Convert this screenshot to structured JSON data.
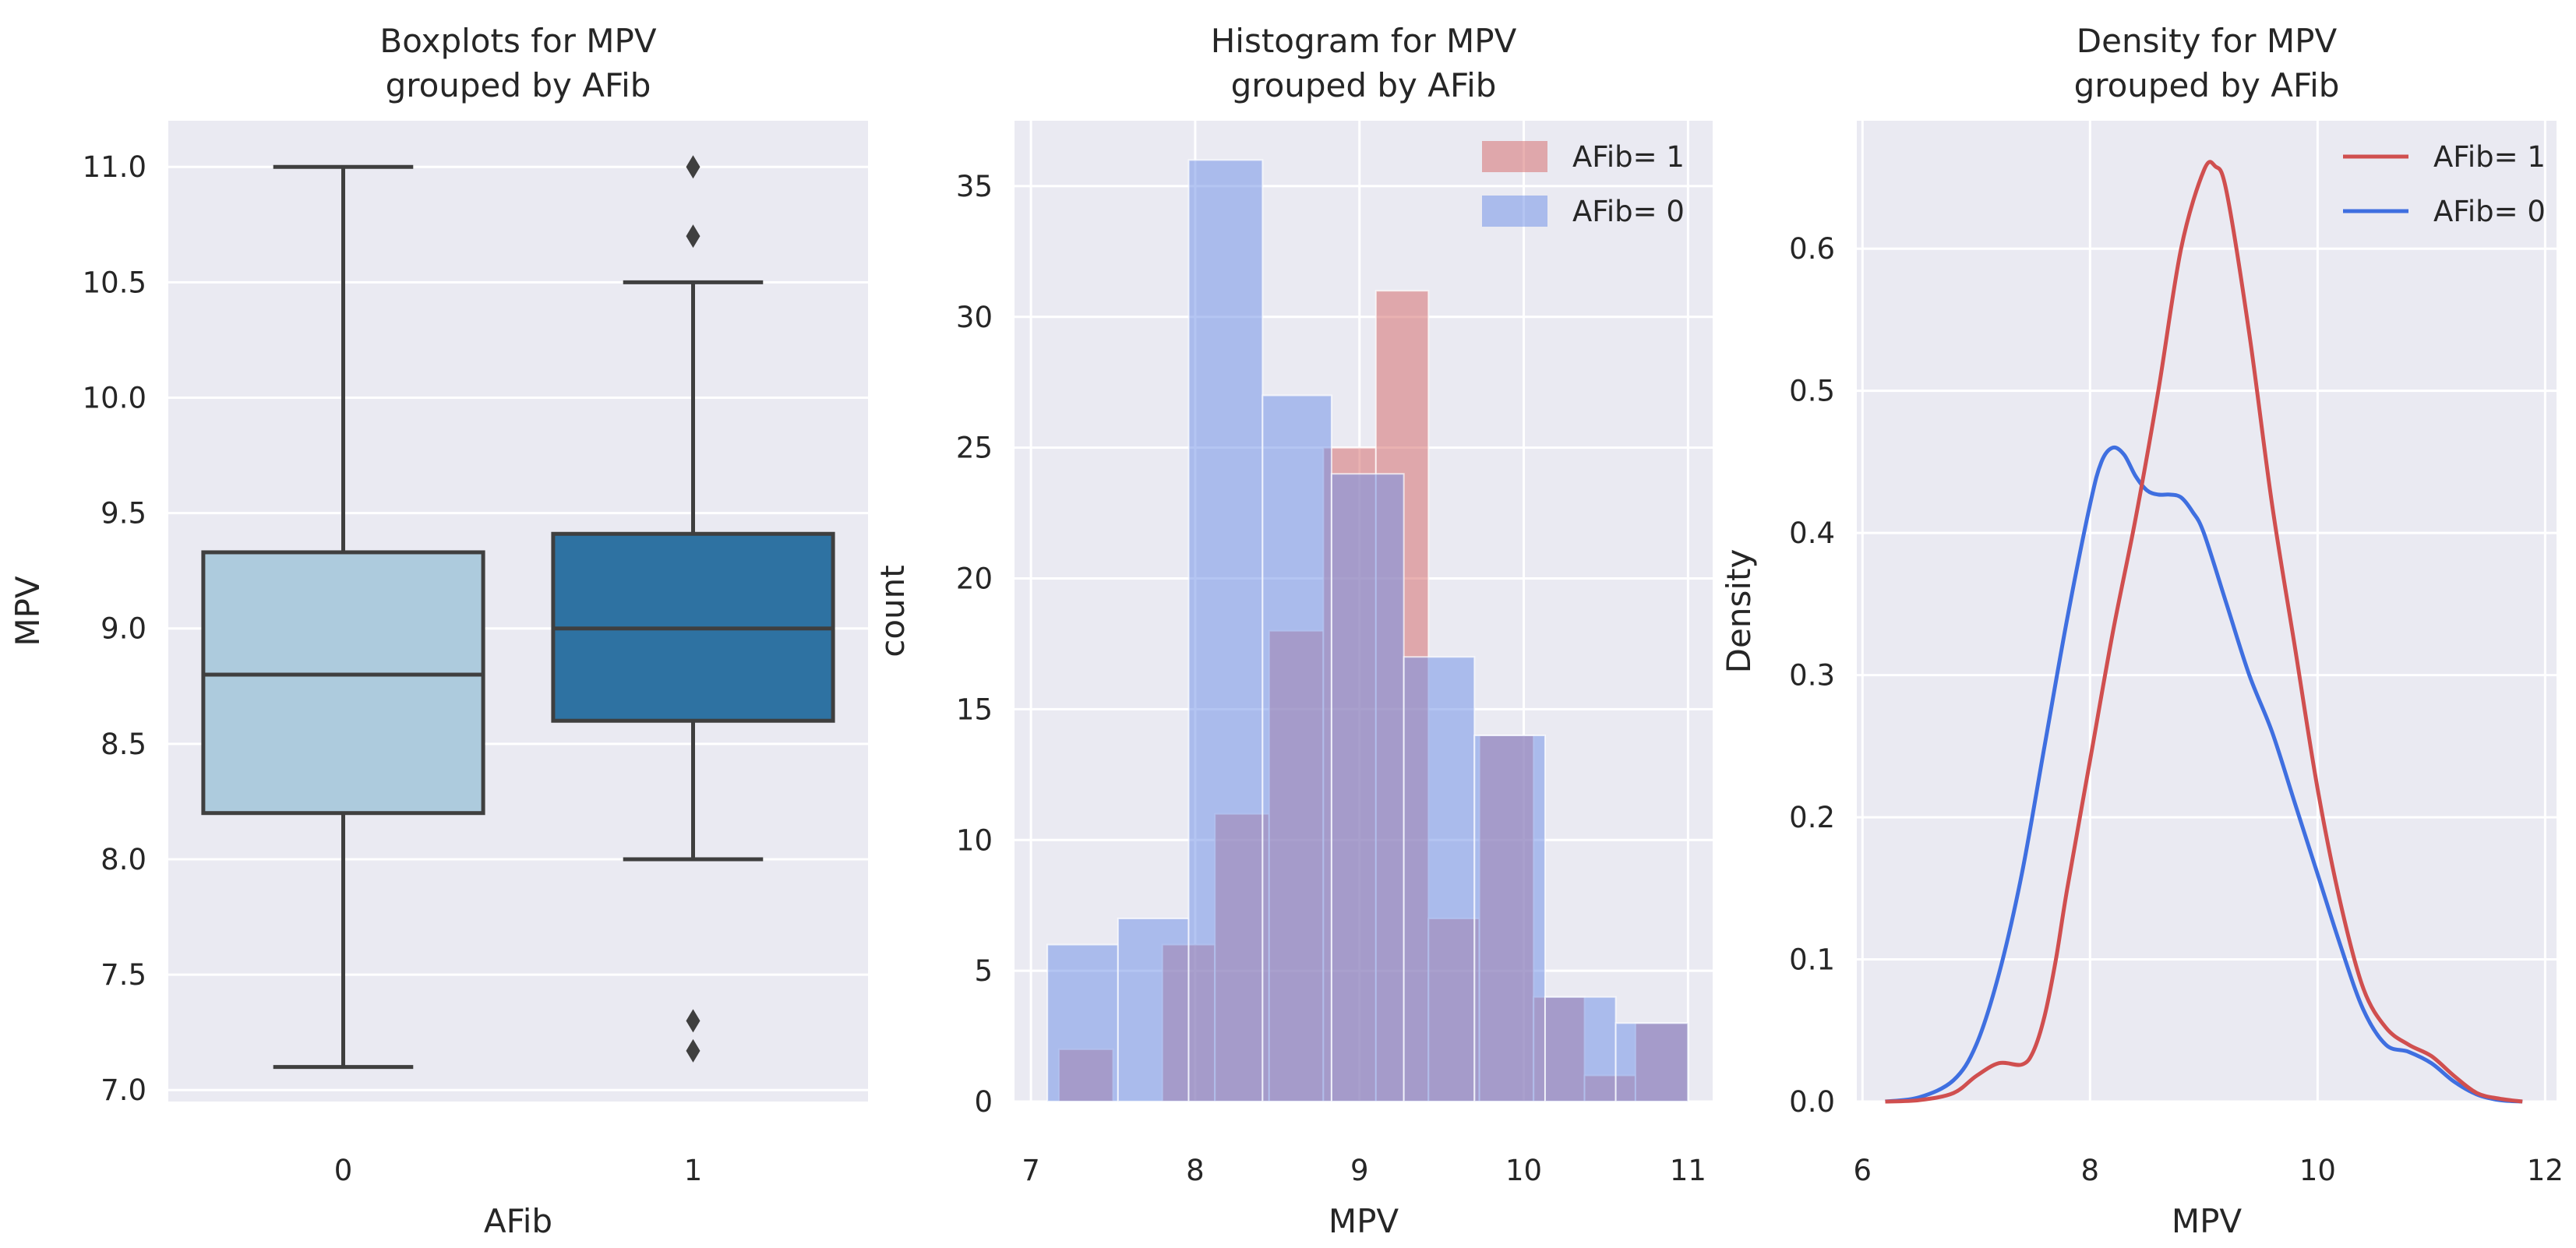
{
  "colors": {
    "plot_bg": "#EAEAF2",
    "grid": "#FFFFFF",
    "box_afib0": "#ADCBDD",
    "box_afib1": "#2E72A2",
    "box_edge": "#3F3F3F",
    "hist_afib1": "#D46A6A",
    "hist_afib0": "#6F8FE6",
    "density_afib1": "#D04F4F",
    "density_afib0": "#3F6FE0"
  },
  "chart_data": [
    {
      "type": "box",
      "title": "Boxplots for MPV\ngrouped by AFib",
      "xlabel": "AFib",
      "ylabel": "MPV",
      "categories": [
        "0",
        "1"
      ],
      "ylim": [
        6.95,
        11.2
      ],
      "yticks": [
        7.0,
        7.5,
        8.0,
        8.5,
        9.0,
        9.5,
        10.0,
        10.5,
        11.0
      ],
      "ytick_labels": [
        "7.0",
        "7.5",
        "8.0",
        "8.5",
        "9.0",
        "9.5",
        "10.0",
        "10.5",
        "11.0"
      ],
      "boxes": [
        {
          "category": "0",
          "whisker_low": 7.1,
          "q1": 8.2,
          "median": 8.8,
          "q3": 9.33,
          "whisker_high": 11.0,
          "outliers": []
        },
        {
          "category": "1",
          "whisker_low": 8.0,
          "q1": 8.6,
          "median": 9.0,
          "q3": 9.41,
          "whisker_high": 10.5,
          "outliers": [
            7.17,
            7.3,
            10.7,
            11.0
          ]
        }
      ]
    },
    {
      "type": "histogram",
      "title": "Histogram for MPV\ngrouped by AFib",
      "xlabel": "MPV",
      "ylabel": "count",
      "xlim": [
        6.9,
        11.15
      ],
      "ylim": [
        0,
        37.5
      ],
      "xticks": [
        7,
        8,
        9,
        10,
        11
      ],
      "xtick_labels": [
        "7",
        "8",
        "9",
        "10",
        "11"
      ],
      "yticks": [
        0,
        5,
        10,
        15,
        20,
        25,
        30,
        35
      ],
      "ytick_labels": [
        "0",
        "5",
        "10",
        "15",
        "20",
        "25",
        "30",
        "35"
      ],
      "legend_position": "top-right",
      "series": [
        {
          "name": "AFib= 1",
          "color_key": "hist_afib1",
          "bins": [
            {
              "x0": 7.17,
              "x1": 7.5,
              "count": 2
            },
            {
              "x0": 7.8,
              "x1": 8.12,
              "count": 6
            },
            {
              "x0": 8.12,
              "x1": 8.45,
              "count": 11
            },
            {
              "x0": 8.45,
              "x1": 8.78,
              "count": 18
            },
            {
              "x0": 8.78,
              "x1": 9.1,
              "count": 25
            },
            {
              "x0": 9.1,
              "x1": 9.42,
              "count": 31
            },
            {
              "x0": 9.42,
              "x1": 9.73,
              "count": 7
            },
            {
              "x0": 9.73,
              "x1": 10.06,
              "count": 14
            },
            {
              "x0": 10.06,
              "x1": 10.37,
              "count": 4
            },
            {
              "x0": 10.37,
              "x1": 10.68,
              "count": 1
            },
            {
              "x0": 10.68,
              "x1": 11.0,
              "count": 3
            }
          ]
        },
        {
          "name": "AFib= 0",
          "color_key": "hist_afib0",
          "bins": [
            {
              "x0": 7.1,
              "x1": 7.53,
              "count": 6
            },
            {
              "x0": 7.53,
              "x1": 7.96,
              "count": 7
            },
            {
              "x0": 7.96,
              "x1": 8.41,
              "count": 36
            },
            {
              "x0": 8.41,
              "x1": 8.83,
              "count": 27
            },
            {
              "x0": 8.83,
              "x1": 9.27,
              "count": 24
            },
            {
              "x0": 9.27,
              "x1": 9.7,
              "count": 17
            },
            {
              "x0": 9.7,
              "x1": 10.13,
              "count": 14
            },
            {
              "x0": 10.13,
              "x1": 10.56,
              "count": 4
            },
            {
              "x0": 10.56,
              "x1": 11.0,
              "count": 3
            }
          ]
        }
      ]
    },
    {
      "type": "line",
      "title": "Density for MPV\ngrouped by AFib",
      "xlabel": "MPV",
      "ylabel": "Density",
      "xlim": [
        5.95,
        12.1
      ],
      "ylim": [
        0,
        0.69
      ],
      "xticks": [
        6,
        8,
        10,
        12
      ],
      "xtick_labels": [
        "6",
        "8",
        "10",
        "12"
      ],
      "yticks": [
        0.0,
        0.1,
        0.2,
        0.3,
        0.4,
        0.5,
        0.6
      ],
      "ytick_labels": [
        "0.0",
        "0.1",
        "0.2",
        "0.3",
        "0.4",
        "0.5",
        "0.6"
      ],
      "legend_position": "top-right",
      "series": [
        {
          "name": "AFib= 1",
          "color_key": "density_afib1",
          "x": [
            6.2,
            6.5,
            6.8,
            7.0,
            7.2,
            7.4,
            7.5,
            7.6,
            7.7,
            7.8,
            8.0,
            8.2,
            8.4,
            8.6,
            8.8,
            9.0,
            9.1,
            9.2,
            9.4,
            9.6,
            9.8,
            10.0,
            10.2,
            10.4,
            10.6,
            10.8,
            11.0,
            11.2,
            11.4,
            11.6,
            11.8
          ],
          "y": [
            0.0,
            0.001,
            0.006,
            0.018,
            0.027,
            0.026,
            0.035,
            0.06,
            0.1,
            0.15,
            0.24,
            0.33,
            0.41,
            0.5,
            0.6,
            0.655,
            0.658,
            0.64,
            0.54,
            0.42,
            0.32,
            0.22,
            0.14,
            0.08,
            0.052,
            0.04,
            0.032,
            0.018,
            0.006,
            0.002,
            0.0
          ]
        },
        {
          "name": "AFib= 0",
          "color_key": "density_afib0",
          "x": [
            6.2,
            6.5,
            6.8,
            7.0,
            7.2,
            7.4,
            7.6,
            7.8,
            8.0,
            8.1,
            8.2,
            8.3,
            8.4,
            8.5,
            8.6,
            8.7,
            8.8,
            8.9,
            9.0,
            9.2,
            9.4,
            9.6,
            9.8,
            10.0,
            10.2,
            10.4,
            10.6,
            10.8,
            11.0,
            11.2,
            11.4,
            11.6,
            11.8
          ],
          "y": [
            0.0,
            0.003,
            0.015,
            0.04,
            0.09,
            0.16,
            0.25,
            0.34,
            0.42,
            0.45,
            0.46,
            0.455,
            0.44,
            0.43,
            0.427,
            0.427,
            0.425,
            0.415,
            0.4,
            0.35,
            0.3,
            0.26,
            0.21,
            0.16,
            0.11,
            0.065,
            0.04,
            0.035,
            0.027,
            0.014,
            0.005,
            0.001,
            0.0
          ]
        }
      ]
    }
  ]
}
